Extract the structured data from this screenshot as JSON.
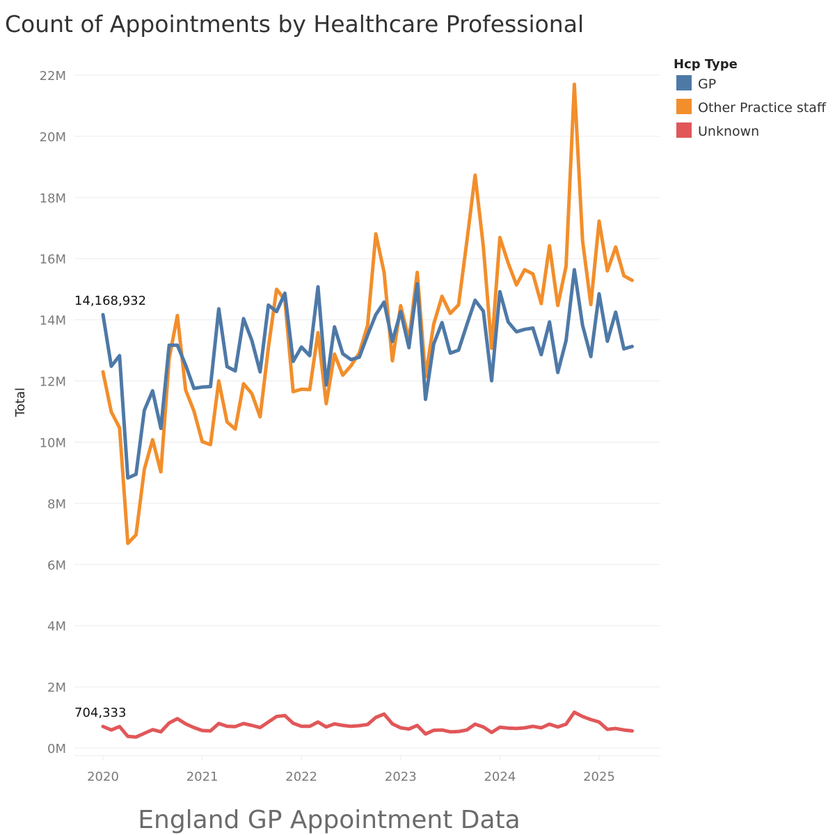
{
  "chart_data": {
    "type": "line",
    "title": "Count of Appointments by Healthcare Professional",
    "caption": "England GP Appointment Data",
    "ylabel": "Total",
    "xlabel": "",
    "ylim": [
      0,
      22000000
    ],
    "yticks": [
      {
        "value": 0,
        "label": "0M"
      },
      {
        "value": 2000000,
        "label": "2M"
      },
      {
        "value": 4000000,
        "label": "4M"
      },
      {
        "value": 6000000,
        "label": "6M"
      },
      {
        "value": 8000000,
        "label": "8M"
      },
      {
        "value": 10000000,
        "label": "10M"
      },
      {
        "value": 12000000,
        "label": "12M"
      },
      {
        "value": 14000000,
        "label": "14M"
      },
      {
        "value": 16000000,
        "label": "16M"
      },
      {
        "value": 18000000,
        "label": "18M"
      },
      {
        "value": 20000000,
        "label": "20M"
      },
      {
        "value": 22000000,
        "label": "22M"
      }
    ],
    "xticks": [
      {
        "value": 2020,
        "label": "2020"
      },
      {
        "value": 2021,
        "label": "2021"
      },
      {
        "value": 2022,
        "label": "2022"
      },
      {
        "value": 2023,
        "label": "2023"
      },
      {
        "value": 2024,
        "label": "2024"
      },
      {
        "value": 2025,
        "label": "2025"
      }
    ],
    "x_start": 2020,
    "x_step_months": 1,
    "legend": {
      "title": "Hcp Type",
      "position": "top-right",
      "entries": [
        {
          "name": "GP",
          "color": "#4e79a7"
        },
        {
          "name": "Other Practice staff",
          "color": "#f28e2b"
        },
        {
          "name": "Unknown",
          "color": "#e15759"
        }
      ]
    },
    "annotations": [
      {
        "series": "GP",
        "index": 0,
        "text": "14,168,932"
      },
      {
        "series": "Unknown",
        "index": 0,
        "text": "704,333"
      }
    ],
    "series": [
      {
        "name": "GP",
        "color": "#4e79a7",
        "values": [
          14170000,
          12480000,
          12830000,
          8830000,
          8950000,
          11040000,
          11680000,
          10450000,
          13170000,
          13170000,
          12520000,
          11760000,
          11800000,
          11820000,
          14360000,
          12470000,
          12330000,
          14040000,
          13330000,
          12300000,
          14480000,
          14270000,
          14870000,
          12640000,
          13110000,
          12830000,
          15080000,
          11870000,
          13770000,
          12890000,
          12700000,
          12780000,
          13500000,
          14170000,
          14580000,
          13290000,
          14270000,
          13090000,
          15180000,
          11400000,
          13210000,
          13910000,
          12910000,
          13010000,
          13840000,
          14640000,
          14280000,
          12010000,
          14920000,
          13930000,
          13610000,
          13690000,
          13730000,
          12860000,
          13930000,
          12280000,
          13320000,
          15640000,
          13820000,
          12800000,
          14850000,
          13300000,
          14250000,
          13050000,
          13130000
        ]
      },
      {
        "name": "Other Practice staff",
        "color": "#f28e2b",
        "values": [
          12300000,
          10990000,
          10470000,
          6690000,
          6970000,
          9110000,
          10080000,
          9030000,
          12730000,
          14140000,
          11700000,
          11020000,
          10020000,
          9920000,
          12000000,
          10660000,
          10430000,
          11910000,
          11590000,
          10830000,
          13090000,
          15000000,
          14650000,
          11650000,
          11730000,
          11720000,
          13580000,
          11260000,
          12880000,
          12190000,
          12500000,
          12920000,
          13820000,
          16810000,
          15550000,
          12660000,
          14460000,
          13350000,
          15550000,
          12140000,
          13860000,
          14770000,
          14210000,
          14490000,
          16560000,
          18730000,
          16400000,
          13070000,
          16690000,
          15860000,
          15140000,
          15640000,
          15500000,
          14530000,
          16420000,
          14470000,
          15750000,
          21700000,
          16590000,
          14500000,
          17230000,
          15600000,
          16380000,
          15440000,
          15290000
        ]
      },
      {
        "name": "Unknown",
        "color": "#e15759",
        "values": [
          704333,
          590000,
          700000,
          380000,
          360000,
          480000,
          600000,
          530000,
          820000,
          960000,
          790000,
          670000,
          570000,
          560000,
          800000,
          710000,
          700000,
          800000,
          740000,
          670000,
          850000,
          1030000,
          1060000,
          810000,
          710000,
          710000,
          850000,
          690000,
          790000,
          740000,
          710000,
          730000,
          770000,
          1000000,
          1110000,
          790000,
          660000,
          620000,
          740000,
          460000,
          580000,
          590000,
          530000,
          540000,
          590000,
          780000,
          690000,
          510000,
          680000,
          650000,
          640000,
          660000,
          710000,
          660000,
          780000,
          690000,
          780000,
          1170000,
          1030000,
          930000,
          850000,
          610000,
          640000,
          590000,
          560000
        ]
      }
    ]
  }
}
